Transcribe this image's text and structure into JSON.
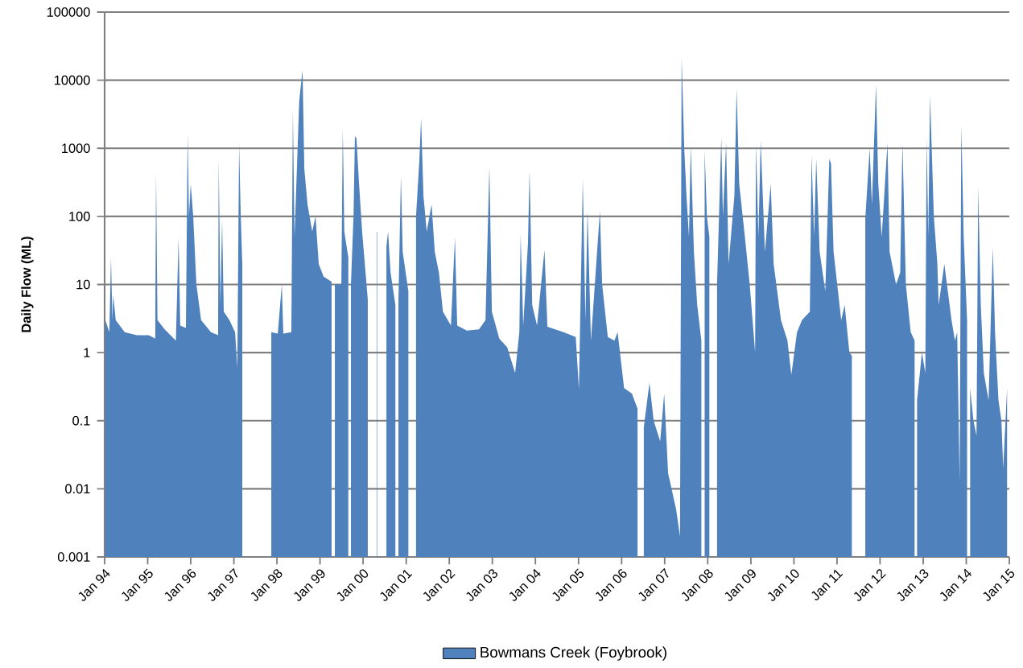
{
  "chart_data": {
    "type": "area",
    "ylabel": "Daily Flow (ML)",
    "log": "y",
    "grid": "y",
    "legend": "bottom",
    "xlim": [
      "1994-01-01",
      "2015-01-01"
    ],
    "xticks": [
      {
        "value": "1994-01-01",
        "label": "Jan 94"
      },
      {
        "value": "1995-01-01",
        "label": "Jan 95"
      },
      {
        "value": "1996-01-01",
        "label": "Jan 96"
      },
      {
        "value": "1997-01-01",
        "label": "Jan 97"
      },
      {
        "value": "1998-01-01",
        "label": "Jan 98"
      },
      {
        "value": "1999-01-01",
        "label": "Jan 99"
      },
      {
        "value": "2000-01-01",
        "label": "Jan 00"
      },
      {
        "value": "2001-01-01",
        "label": "Jan 01"
      },
      {
        "value": "2002-01-01",
        "label": "Jan 02"
      },
      {
        "value": "2003-01-01",
        "label": "Jan 03"
      },
      {
        "value": "2004-01-01",
        "label": "Jan 04"
      },
      {
        "value": "2005-01-01",
        "label": "Jan 05"
      },
      {
        "value": "2006-01-01",
        "label": "Jan 06"
      },
      {
        "value": "2007-01-01",
        "label": "Jan 07"
      },
      {
        "value": "2008-01-01",
        "label": "Jan 08"
      },
      {
        "value": "2009-01-01",
        "label": "Jan 09"
      },
      {
        "value": "2010-01-01",
        "label": "Jan 10"
      },
      {
        "value": "2011-01-01",
        "label": "Jan 11"
      },
      {
        "value": "2012-01-01",
        "label": "Jan 12"
      },
      {
        "value": "2013-01-01",
        "label": "Jan 13"
      },
      {
        "value": "2014-01-01",
        "label": "Jan 14"
      },
      {
        "value": "2015-01-01",
        "label": "Jan 15"
      }
    ],
    "ylim": [
      0.001,
      100000
    ],
    "yticks": [
      0.001,
      0.01,
      0.1,
      1,
      10,
      100,
      1000,
      10000,
      100000
    ],
    "x": [
      "1994-01-07",
      "1994-02-10",
      "1994-02-24",
      "1994-03-08",
      "1994-03-15",
      "1994-04-05",
      "1994-06-20",
      "1994-10-01",
      "1995-01-10",
      "1995-03-06",
      "1995-03-13",
      "1995-03-25",
      "1995-05-25",
      "1995-08-28",
      "1995-09-20",
      "1995-10-04",
      "1995-11-21",
      "1995-12-06",
      "1995-12-17",
      "1996-01-01",
      "1996-01-22",
      "1996-02-18",
      "1996-03-29",
      "1996-06-20",
      "1996-08-20",
      "1996-08-25",
      "1996-09-09",
      "1996-09-23",
      "1996-10-07",
      "1996-11-24",
      "1997-01-11",
      "1997-01-30",
      "1997-02-14",
      "1997-02-28",
      "1997-03-13",
      "1997-06-01",
      "1997-11-14",
      "1998-01-08",
      "1998-02-11",
      "1998-02-24",
      "1998-05-03",
      "1998-05-16",
      "1998-05-30",
      "1998-07-09",
      "1998-08-06",
      "1998-08-21",
      "1998-09-17",
      "1998-10-27",
      "1998-11-24",
      "1998-12-21",
      "1999-02-01",
      "1999-04-09",
      "1999-04-14",
      "1999-05-07",
      "1999-07-01",
      "1999-07-13",
      "1999-07-26",
      "1999-08-29",
      "1999-09-05",
      "1999-09-20",
      "1999-10-12",
      "1999-10-24",
      "1999-11-06",
      "1999-11-28",
      "1999-12-24",
      "2000-01-22",
      "2000-02-10",
      "2000-03-01",
      "2000-04-25",
      "2000-04-29",
      "2000-05-20",
      "2000-07-17",
      "2000-07-31",
      "2000-08-21",
      "2000-10-01",
      "2000-10-10",
      "2000-10-27",
      "2000-11-17",
      "2000-12-02",
      "2001-01-19",
      "2001-02-10",
      "2001-03-25",
      "2001-04-23",
      "2001-05-07",
      "2001-05-27",
      "2001-06-24",
      "2001-08-04",
      "2001-08-31",
      "2001-10-05",
      "2001-11-08",
      "2002-01-15",
      "2002-02-18",
      "2002-03-09",
      "2002-05-30",
      "2002-09-10",
      "2002-11-04",
      "2002-12-07",
      "2002-12-28",
      "2003-03-01",
      "2003-05-07",
      "2003-07-13",
      "2003-08-18",
      "2003-08-29",
      "2003-09-20",
      "2003-10-30",
      "2003-11-13",
      "2003-12-05",
      "2004-01-15",
      "2004-03-18",
      "2004-04-12",
      "2004-08-27",
      "2004-12-08",
      "2005-01-04",
      "2005-02-06",
      "2005-02-28",
      "2005-03-18",
      "2005-04-16",
      "2005-07-01",
      "2005-07-20",
      "2005-09-06",
      "2005-11-01",
      "2005-11-28",
      "2006-01-22",
      "2006-03-29",
      "2006-05-16",
      "2006-06-01",
      "2006-07-08",
      "2006-08-25",
      "2006-09-30",
      "2006-11-24",
      "2006-12-28",
      "2007-01-30",
      "2007-04-08",
      "2007-05-11",
      "2007-05-25",
      "2007-06-16",
      "2007-07-05",
      "2007-07-26",
      "2007-08-10",
      "2007-09-06",
      "2007-10-04",
      "2007-11-08",
      "2007-11-20",
      "2007-12-06",
      "2007-12-25",
      "2008-01-15",
      "2008-02-10",
      "2008-03-20",
      "2008-04-25",
      "2008-05-09",
      "2008-06-05",
      "2008-06-26",
      "2008-08-14",
      "2008-09-02",
      "2008-09-24",
      "2008-11-11",
      "2008-12-22",
      "2009-02-06",
      "2009-02-13",
      "2009-03-06",
      "2009-03-25",
      "2009-04-30",
      "2009-06-18",
      "2009-07-13",
      "2009-09-13",
      "2009-11-07",
      "2009-12-10",
      "2010-01-27",
      "2010-03-10",
      "2010-05-16",
      "2010-05-30",
      "2010-06-21",
      "2010-07-09",
      "2010-08-07",
      "2010-09-24",
      "2010-10-28",
      "2010-11-11",
      "2010-12-03",
      "2011-02-06",
      "2011-03-07",
      "2011-04-16",
      "2011-05-07",
      "2011-06-01",
      "2011-08-29",
      "2011-10-05",
      "2011-10-24",
      "2011-11-28",
      "2011-12-17",
      "2012-01-15",
      "2012-03-04",
      "2012-03-22",
      "2012-05-16",
      "2012-06-20",
      "2012-07-09",
      "2012-08-07",
      "2012-09-17",
      "2012-10-20",
      "2012-10-28",
      "2012-11-10",
      "2012-12-21",
      "2013-01-19",
      "2013-01-30",
      "2013-02-13",
      "2013-02-28",
      "2013-04-01",
      "2013-05-01",
      "2013-05-12",
      "2013-06-29",
      "2013-08-29",
      "2013-09-27",
      "2013-10-16",
      "2013-11-06",
      "2013-11-20",
      "2013-12-10",
      "2014-01-08",
      "2014-01-14",
      "2014-02-03",
      "2014-03-03",
      "2014-03-29",
      "2014-04-12",
      "2014-05-04",
      "2014-05-30",
      "2014-07-09",
      "2014-08-14",
      "2014-09-02",
      "2014-10-01",
      "2014-10-26",
      "2014-11-10",
      "2014-12-13"
    ],
    "series": [
      {
        "name": "Bowmans Creek (Foybrook)",
        "color": "#4f81bd",
        "values": [
          3,
          2,
          25,
          3,
          7,
          3,
          2,
          1.8,
          1.8,
          1.6,
          450,
          3,
          2.2,
          1.5,
          49,
          2.5,
          2.3,
          1700,
          100,
          300,
          100,
          10,
          3,
          2,
          1.8,
          700,
          5,
          90,
          4,
          3,
          2,
          0.6,
          1200,
          100,
          20,
          null,
          2,
          1.9,
          10,
          1.9,
          2,
          3700,
          50,
          5000,
          14000,
          500,
          150,
          60,
          100,
          20,
          13,
          11,
          null,
          10,
          10,
          2000,
          60,
          25,
          null,
          10,
          100,
          1500,
          1400,
          300,
          60,
          15,
          6,
          null,
          59,
          59,
          null,
          36,
          60,
          15,
          5,
          null,
          6,
          390,
          30,
          8,
          null,
          100,
          700,
          2800,
          200,
          60,
          150,
          30,
          15,
          4,
          2.5,
          49,
          2.5,
          2.1,
          2.2,
          3,
          550,
          4,
          1.6,
          1.2,
          0.5,
          2,
          55,
          2.5,
          40,
          470,
          5,
          2.5,
          32,
          2.4,
          2,
          1.7,
          0.29,
          350,
          3,
          125,
          1.5,
          120,
          10,
          1.7,
          1.5,
          2,
          0.3,
          0.25,
          0.15,
          null,
          0.08,
          0.36,
          0.1,
          0.05,
          0.25,
          0.017,
          0.005,
          0.002,
          22000,
          1000,
          200,
          50,
          1100,
          30,
          5,
          1.5,
          null,
          950,
          100,
          50,
          null,
          10,
          1450,
          100,
          1200,
          20,
          200,
          7600,
          300,
          50,
          10,
          1,
          1200,
          50,
          1300,
          30,
          300,
          20,
          3,
          1.5,
          0.47,
          2,
          3,
          4,
          800,
          50,
          700,
          30,
          8,
          700,
          600,
          30,
          3,
          5,
          1,
          0.9,
          null,
          93,
          1000,
          150,
          8700,
          300,
          50,
          1200,
          30,
          10,
          15,
          1200,
          10,
          2,
          1.5,
          null,
          0.2,
          1,
          0.5,
          1500,
          50,
          6000,
          100,
          20,
          5,
          20,
          3,
          1.5,
          2,
          0.013,
          2200,
          50,
          3,
          null,
          0.3,
          0.1,
          0.06,
          280,
          5,
          0.5,
          0.2,
          35,
          2,
          0.2,
          0.1,
          0.02,
          0.3
        ]
      }
    ]
  }
}
